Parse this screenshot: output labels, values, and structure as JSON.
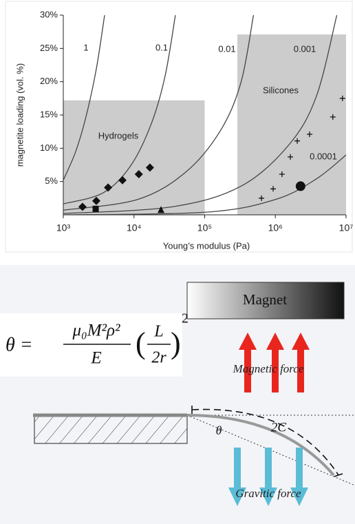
{
  "chart_data": {
    "type": "scatter",
    "x_label": "Young’s modulus (Pa)",
    "y_label": "magnetite loading (vol. %)",
    "xscale": "log",
    "xlim": [
      1000,
      10000000
    ],
    "ylim": [
      0,
      30
    ],
    "xticks": [
      {
        "value": 1000,
        "label": "10³"
      },
      {
        "value": 10000,
        "label": "10⁴"
      },
      {
        "value": 100000,
        "label": "10⁵"
      },
      {
        "value": 1000000,
        "label": "10⁶"
      },
      {
        "value": 10000000,
        "label": "10⁷"
      }
    ],
    "yticks": [
      {
        "value": 5,
        "label": "5%"
      },
      {
        "value": 10,
        "label": "10%"
      },
      {
        "value": 15,
        "label": "15%"
      },
      {
        "value": 20,
        "label": "20%"
      },
      {
        "value": 25,
        "label": "25%"
      },
      {
        "value": 30,
        "label": "30%"
      }
    ],
    "regions": [
      {
        "label": "Hydrogels",
        "color": "#cccccc",
        "x": [
          1000,
          100000
        ],
        "y": [
          0,
          17.2
        ]
      },
      {
        "label": "Silicones",
        "color": "#cccccc",
        "x": [
          290000,
          10000000
        ],
        "y": [
          0,
          27.1
        ]
      }
    ],
    "curves": [
      {
        "label": "1",
        "color": "#444444",
        "x": [
          1000,
          1496,
          2090,
          2930,
          3840
        ],
        "values": [
          5.2,
          9.5,
          14.7,
          21.9,
          30
        ]
      },
      {
        "label": "0.1",
        "color": "#444444",
        "x": [
          1000,
          3660,
          9000,
          17600,
          27600,
          38500
        ],
        "values": [
          1.65,
          3.3,
          7.4,
          13.7,
          20.9,
          30
        ]
      },
      {
        "label": "0.01",
        "color": "#444444",
        "x": [
          1000,
          11200,
          53700,
          166000,
          326000,
          490000
        ],
        "values": [
          0.7,
          2.3,
          6.4,
          12.6,
          19.9,
          30
        ]
      },
      {
        "label": "0.001",
        "color": "#444444",
        "x": [
          1000,
          34500,
          326000,
          1550000,
          3800000,
          7400000
        ],
        "values": [
          0.2,
          1.2,
          4.3,
          10.5,
          17.8,
          30
        ]
      },
      {
        "label": "0.0001",
        "color": "#444444",
        "x": [
          1000,
          105000,
          1000000,
          3800000,
          10000000
        ],
        "values": [
          0,
          0.4,
          2.3,
          5.4,
          9.0
        ]
      }
    ],
    "series": [
      {
        "marker": "diamond",
        "color": "#111111",
        "x": [
          1870,
          2930,
          4300,
          6870,
          11700,
          16800
        ],
        "values": [
          1.2,
          2.1,
          4.1,
          5.2,
          6.1,
          7.1
        ]
      },
      {
        "marker": "square",
        "color": "#111111",
        "x": [
          2870
        ],
        "values": [
          0.9
        ]
      },
      {
        "marker": "triangle",
        "color": "#111111",
        "x": [
          24100
        ],
        "values": [
          0.7
        ]
      },
      {
        "marker": "plus",
        "color": "#111111",
        "x": [
          636000,
          930000,
          1240000,
          1630000,
          2040000,
          3050000,
          6500000,
          8900000
        ],
        "values": [
          2.5,
          3.9,
          6.1,
          8.7,
          11.1,
          12.1,
          14.7,
          17.5
        ]
      },
      {
        "marker": "circle",
        "color": "#111111",
        "x": [
          2270000
        ],
        "values": [
          4.3
        ]
      }
    ]
  },
  "diagram": {
    "magnet": "Magnet",
    "magnetic_force": "Magnetic force",
    "gravitic_force": "Gravitic force",
    "arc_label": "2C",
    "angle_label": "θ",
    "equation": {
      "lhs": "θ =",
      "numerator": "μ₀M²ρ²",
      "denominator": "E",
      "paren_numerator": "L",
      "paren_denominator": "2r",
      "exponent": "2"
    }
  }
}
